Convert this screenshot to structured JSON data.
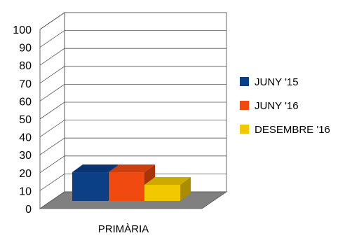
{
  "chart_data": {
    "type": "bar",
    "categories": [
      "PRIMÀRIA"
    ],
    "series": [
      {
        "name": "JUNY '15",
        "values": [
          16
        ],
        "color": "#0b3f86"
      },
      {
        "name": "JUNY '16",
        "values": [
          16
        ],
        "color": "#f04a10"
      },
      {
        "name": "DESEMBRE '16",
        "values": [
          9
        ],
        "color": "#f2c800"
      }
    ],
    "ylim": [
      0,
      100
    ],
    "yticks": [
      0,
      10,
      20,
      30,
      40,
      50,
      60,
      70,
      80,
      90,
      100
    ],
    "grid": true,
    "legend": "right",
    "style": "3d-column",
    "floor_color": "#808080"
  }
}
